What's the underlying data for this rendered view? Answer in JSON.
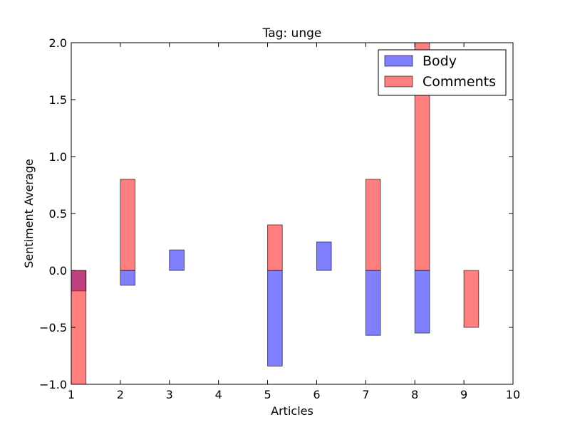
{
  "chart_data": {
    "type": "bar",
    "title": "Tag: unge",
    "xlabel": "Articles",
    "ylabel": "Sentiment Average",
    "xlim": [
      1,
      10
    ],
    "ylim": [
      -1.0,
      2.0
    ],
    "x_ticks": [
      "1",
      "2",
      "3",
      "4",
      "5",
      "6",
      "7",
      "8",
      "9",
      "10"
    ],
    "y_ticks": [
      "−1.0",
      "−0.5",
      "0.0",
      "0.5",
      "1.0",
      "1.5",
      "2.0"
    ],
    "x": [
      1,
      2,
      3,
      4,
      5,
      6,
      7,
      8,
      9
    ],
    "series": [
      {
        "name": "Body",
        "color": "#0000ff",
        "values": [
          -0.18,
          -0.13,
          0.18,
          0.0,
          -0.84,
          0.25,
          -0.57,
          -0.55,
          0.0
        ]
      },
      {
        "name": "Comments",
        "color": "#ff0000",
        "values": [
          -1.0,
          0.8,
          0.0,
          0.0,
          0.4,
          0.0,
          0.8,
          2.0,
          -0.5
        ]
      }
    ],
    "legend": {
      "position": "top-right"
    },
    "grid": false
  }
}
